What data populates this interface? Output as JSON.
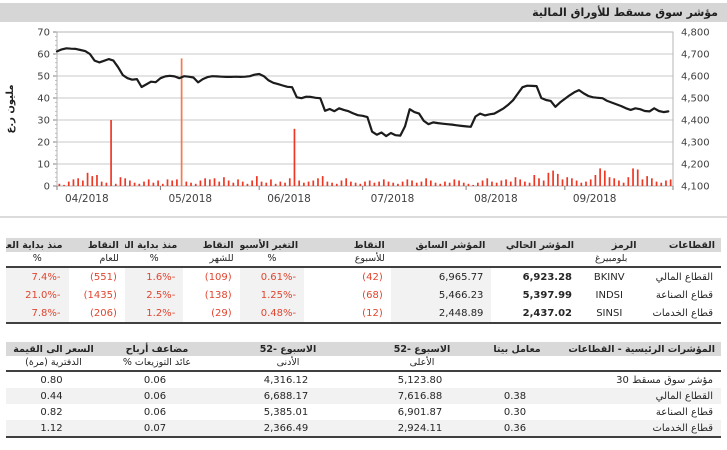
{
  "title": "مؤشر سوق مسقط للأوراق المالية",
  "colors": {
    "title_bar_bg": "#d6d6d6",
    "table_header_bg": "#d9d9d9",
    "band_bg": "#f2f2f2",
    "negative_red": "#e0452f",
    "bar_red": "#ee3826",
    "bar_spike_orange": "#f4794f",
    "line_black": "#1c1c1c",
    "grid_gray": "#c9c9c9"
  },
  "chart_data": {
    "type": "line+bar",
    "title": "مؤشر سوق مسقط للأوراق المالية",
    "legend_position": "none",
    "grid": "horizontal",
    "y_left": {
      "label": "مليون ر.ع",
      "min": 0,
      "max": 70,
      "step": 10,
      "ticks": [
        0,
        10,
        20,
        30,
        40,
        50,
        60,
        70
      ]
    },
    "y_right": {
      "min": 4100,
      "max": 4800,
      "step": 100,
      "ticks": [
        4100,
        4200,
        4300,
        4400,
        4500,
        4600,
        4700,
        4800
      ]
    },
    "x_labels": [
      "04/2018",
      "05/2018",
      "06/2018",
      "07/2018",
      "08/2018",
      "09/2018"
    ],
    "x_domain": [
      0,
      131
    ],
    "month_boundaries": [
      0,
      22,
      43,
      65,
      87,
      108,
      131
    ],
    "index_line": {
      "name": "index-level-right-axis",
      "points": [
        [
          0,
          4712
        ],
        [
          1,
          4721
        ],
        [
          2,
          4726
        ],
        [
          3,
          4724
        ],
        [
          4,
          4723
        ],
        [
          5,
          4718
        ],
        [
          6,
          4713
        ],
        [
          7,
          4700
        ],
        [
          8,
          4670
        ],
        [
          9,
          4662
        ],
        [
          10,
          4669
        ],
        [
          11,
          4677
        ],
        [
          12,
          4670
        ],
        [
          13,
          4640
        ],
        [
          14,
          4604
        ],
        [
          15,
          4590
        ],
        [
          16,
          4583
        ],
        [
          17,
          4586
        ],
        [
          18,
          4550
        ],
        [
          19,
          4562
        ],
        [
          20,
          4574
        ],
        [
          21,
          4572
        ],
        [
          22,
          4590
        ],
        [
          23,
          4598
        ],
        [
          24,
          4601
        ],
        [
          25,
          4598
        ],
        [
          26,
          4590
        ],
        [
          27,
          4599
        ],
        [
          28,
          4597
        ],
        [
          29,
          4593
        ],
        [
          30,
          4571
        ],
        [
          31,
          4586
        ],
        [
          32,
          4595
        ],
        [
          33,
          4599
        ],
        [
          34,
          4598
        ],
        [
          35,
          4597
        ],
        [
          36,
          4596
        ],
        [
          37,
          4596
        ],
        [
          38,
          4597
        ],
        [
          39,
          4596
        ],
        [
          40,
          4597
        ],
        [
          41,
          4599
        ],
        [
          42,
          4606
        ],
        [
          43,
          4609
        ],
        [
          44,
          4599
        ],
        [
          45,
          4580
        ],
        [
          46,
          4569
        ],
        [
          47,
          4563
        ],
        [
          48,
          4557
        ],
        [
          49,
          4551
        ],
        [
          50,
          4549
        ],
        [
          51,
          4503
        ],
        [
          52,
          4499
        ],
        [
          53,
          4506
        ],
        [
          54,
          4505
        ],
        [
          55,
          4501
        ],
        [
          56,
          4499
        ],
        [
          57,
          4442
        ],
        [
          58,
          4450
        ],
        [
          59,
          4440
        ],
        [
          60,
          4453
        ],
        [
          61,
          4446
        ],
        [
          62,
          4440
        ],
        [
          63,
          4430
        ],
        [
          64,
          4422
        ],
        [
          65,
          4419
        ],
        [
          66,
          4413
        ],
        [
          67,
          4347
        ],
        [
          68,
          4333
        ],
        [
          69,
          4343
        ],
        [
          70,
          4327
        ],
        [
          71,
          4341
        ],
        [
          72,
          4331
        ],
        [
          73,
          4329
        ],
        [
          74,
          4371
        ],
        [
          75,
          4449
        ],
        [
          76,
          4436
        ],
        [
          77,
          4429
        ],
        [
          78,
          4396
        ],
        [
          79,
          4381
        ],
        [
          80,
          4389
        ],
        [
          81,
          4386
        ],
        [
          82,
          4383
        ],
        [
          83,
          4381
        ],
        [
          84,
          4379
        ],
        [
          85,
          4376
        ],
        [
          86,
          4373
        ],
        [
          87,
          4371
        ],
        [
          88,
          4369
        ],
        [
          89,
          4416
        ],
        [
          90,
          4429
        ],
        [
          91,
          4421
        ],
        [
          92,
          4426
        ],
        [
          93,
          4429
        ],
        [
          94,
          4441
        ],
        [
          95,
          4453
        ],
        [
          96,
          4470
        ],
        [
          97,
          4490
        ],
        [
          98,
          4520
        ],
        [
          99,
          4549
        ],
        [
          100,
          4556
        ],
        [
          101,
          4555
        ],
        [
          102,
          4554
        ],
        [
          103,
          4500
        ],
        [
          104,
          4491
        ],
        [
          105,
          4487
        ],
        [
          106,
          4460
        ],
        [
          107,
          4480
        ],
        [
          108,
          4496
        ],
        [
          109,
          4512
        ],
        [
          110,
          4526
        ],
        [
          111,
          4536
        ],
        [
          112,
          4521
        ],
        [
          113,
          4509
        ],
        [
          114,
          4503
        ],
        [
          115,
          4501
        ],
        [
          116,
          4499
        ],
        [
          117,
          4487
        ],
        [
          118,
          4479
        ],
        [
          119,
          4471
        ],
        [
          120,
          4463
        ],
        [
          121,
          4453
        ],
        [
          122,
          4446
        ],
        [
          123,
          4453
        ],
        [
          124,
          4449
        ],
        [
          125,
          4441
        ],
        [
          126,
          4439
        ],
        [
          127,
          4453
        ],
        [
          128,
          4441
        ],
        [
          129,
          4436
        ],
        [
          130,
          4439
        ]
      ]
    },
    "volume_bars": {
      "name": "traded-value-left-axis-million-omr",
      "spike_index": 26,
      "values": [
        1,
        0.5,
        2,
        3,
        3.5,
        2.5,
        6,
        4.5,
        5,
        2,
        1.5,
        30,
        1,
        4,
        3.5,
        2.5,
        1.5,
        1,
        2,
        3,
        1.5,
        2.5,
        1,
        3,
        2.5,
        3,
        58,
        2,
        1.5,
        1,
        2.5,
        3.5,
        3,
        3.5,
        2,
        4,
        2.5,
        1.5,
        3,
        2,
        1,
        2.5,
        4.5,
        2,
        1.5,
        3,
        1,
        2,
        1.5,
        3.5,
        26,
        2.5,
        1.5,
        2,
        2.5,
        3.5,
        4.5,
        2,
        1.5,
        1,
        2.5,
        3.5,
        2,
        1.5,
        1,
        2,
        2.5,
        1.5,
        2,
        3,
        2,
        1.5,
        1,
        2,
        3,
        2.5,
        1.5,
        2,
        3.5,
        2.5,
        1.5,
        1,
        2,
        1.5,
        3,
        2.5,
        1.5,
        1,
        0.5,
        1.5,
        2.5,
        3.5,
        2,
        1.5,
        2.5,
        3,
        2,
        4,
        3,
        2,
        1.5,
        5,
        3.5,
        2.5,
        6,
        7,
        5.5,
        3,
        4,
        3.5,
        2.5,
        1.5,
        2,
        3,
        5,
        8,
        7,
        4,
        3.5,
        2.5,
        1.5,
        4,
        8,
        7.5,
        3,
        4.5,
        3.5,
        2,
        1.5,
        2.5,
        3
      ]
    }
  },
  "table1": {
    "headers": [
      {
        "l": "القطاعات",
        "s": ""
      },
      {
        "l": "الرمز",
        "s": "بلومبيرغ"
      },
      {
        "l": "المؤشر الحالي",
        "s": ""
      },
      {
        "l": "المؤشر السابق",
        "s": ""
      },
      {
        "l": "النقاط",
        "s": "للأسبوع"
      },
      {
        "l": "التغير الأسبوعي",
        "s": "%"
      },
      {
        "l": "النقاط",
        "s": "للشهر"
      },
      {
        "l": "منذ بداية الشهر",
        "s": "%"
      },
      {
        "l": "النقاط",
        "s": "للعام"
      },
      {
        "l": "منذ بداية العام",
        "s": "%"
      }
    ],
    "rows": [
      {
        "c": [
          "القطاع المالي",
          "BKINV",
          "6,923.28",
          "6,965.77",
          "(42)",
          "-0.61%",
          "(109)",
          "-1.6%",
          "(551)",
          "-7.4%"
        ]
      },
      {
        "c": [
          "قطاع الصناعة",
          "INDSI",
          "5,397.99",
          "5,466.23",
          "(68)",
          "-1.25%",
          "(138)",
          "-2.5%",
          "(1435)",
          "-21.0%"
        ]
      },
      {
        "c": [
          "قطاع الخدمات",
          "SINSI",
          "2,437.02",
          "2,448.89",
          "(12)",
          "-0.48%",
          "(29)",
          "-1.2%",
          "(206)",
          "-7.8%"
        ]
      }
    ]
  },
  "table2": {
    "headers": [
      {
        "l": "المؤشرات الرئيسية - القطاعات",
        "s": ""
      },
      {
        "l": "معامل بيتا",
        "s": ""
      },
      {
        "l": "الاسبوع -52",
        "s": "الأعلى"
      },
      {
        "l": "الاسبوع -52",
        "s": "الأدنى"
      },
      {
        "l": "مضاعف أرباح",
        "s": "عائد التوزيعات %"
      },
      {
        "l": "السعر الى القيمة",
        "s": "الدفترية (مرة)"
      }
    ],
    "rows": [
      {
        "c": [
          "مؤشر سوق مسقط 30",
          "",
          "5,123.80",
          "4,316.12",
          "0.06",
          "0.80"
        ]
      },
      {
        "c": [
          "القطاع المالي",
          "0.38",
          "7,616.88",
          "6,688.17",
          "0.06",
          "0.44"
        ]
      },
      {
        "c": [
          "قطاع الصناعة",
          "0.30",
          "6,901.87",
          "5,385.01",
          "0.06",
          "0.82"
        ]
      },
      {
        "c": [
          "قطاع الخدمات",
          "0.36",
          "2,924.11",
          "2,366.49",
          "0.07",
          "1.12"
        ]
      }
    ]
  }
}
